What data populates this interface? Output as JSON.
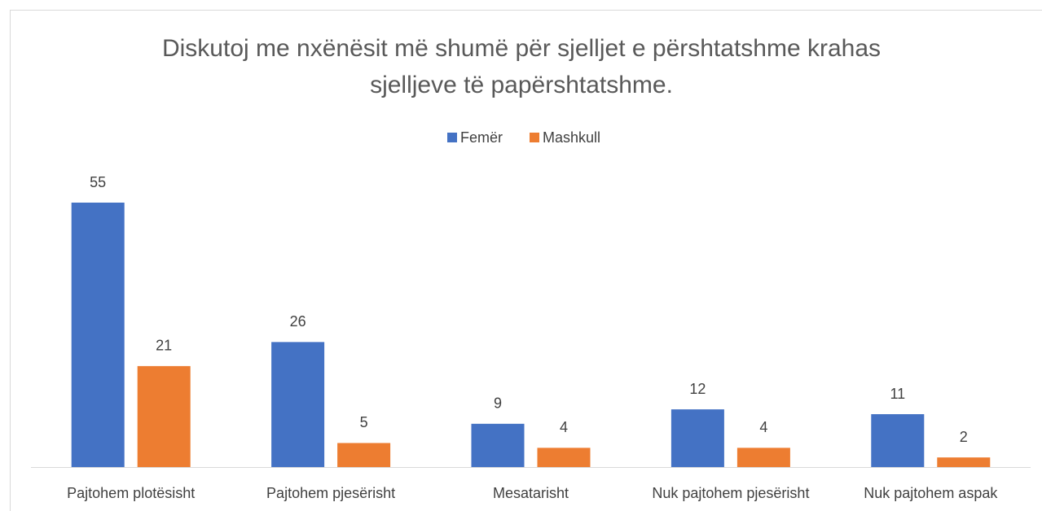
{
  "chart_data": {
    "type": "bar",
    "title": [
      "Diskutoj me nxënësit më shumë për sjelljet e përshtatshme krahas",
      "sjelljeve të papërshtatshme."
    ],
    "categories": [
      "Pajtohem plotësisht",
      "Pajtohem pjesërisht",
      "Mesatarisht",
      "Nuk pajtohem pjesërisht",
      "Nuk pajtohem aspak"
    ],
    "series": [
      {
        "name": "Femër",
        "color": "#4472c4",
        "values": [
          55,
          26,
          9,
          12,
          11
        ]
      },
      {
        "name": "Mashkull",
        "color": "#ed7d31",
        "values": [
          21,
          5,
          4,
          4,
          2
        ]
      }
    ]
  }
}
